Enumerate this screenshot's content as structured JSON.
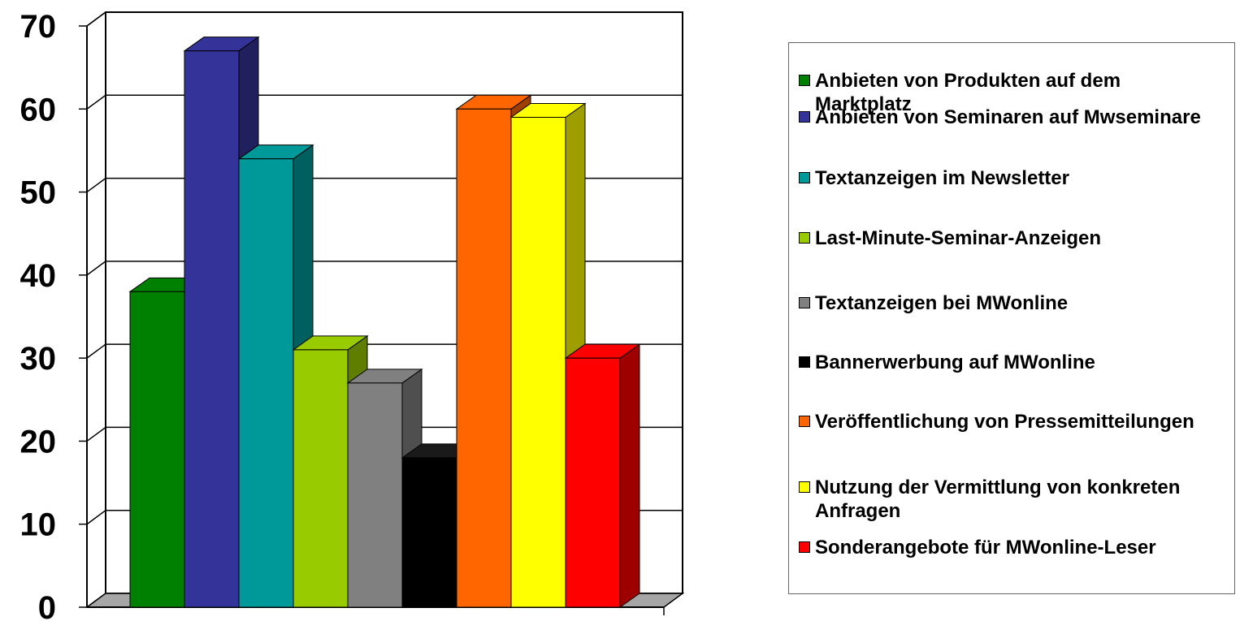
{
  "chart_data": {
    "type": "bar",
    "ylim": [
      0,
      70
    ],
    "yticks": [
      "0",
      "10",
      "20",
      "30",
      "40",
      "50",
      "60",
      "70"
    ],
    "grid": true,
    "legend_position": "right",
    "series": [
      {
        "name": "Anbieten von Produkten auf dem Marktplatz",
        "value": 38,
        "color": "#008000"
      },
      {
        "name": "Anbieten von Seminaren auf Mwseminare",
        "value": 67,
        "color": "#333399"
      },
      {
        "name": "Textanzeigen im Newsletter",
        "value": 54,
        "color": "#009999"
      },
      {
        "name": "Last-Minute-Seminar-Anzeigen",
        "value": 31,
        "color": "#99cc00"
      },
      {
        "name": "Textanzeigen bei MWonline",
        "value": 27,
        "color": "#808080"
      },
      {
        "name": "Bannerwerbung auf MWonline",
        "value": 18,
        "color": "#000000"
      },
      {
        "name": "Veröffentlichung von Pressemitteilungen",
        "value": 60,
        "color": "#ff6600"
      },
      {
        "name": "Nutzung der Vermittlung von konkreten Anfragen",
        "value": 59,
        "color": "#ffff00"
      },
      {
        "name": "Sonderangebote für MWonline-Leser",
        "value": 30,
        "color": "#ff0000"
      }
    ]
  }
}
